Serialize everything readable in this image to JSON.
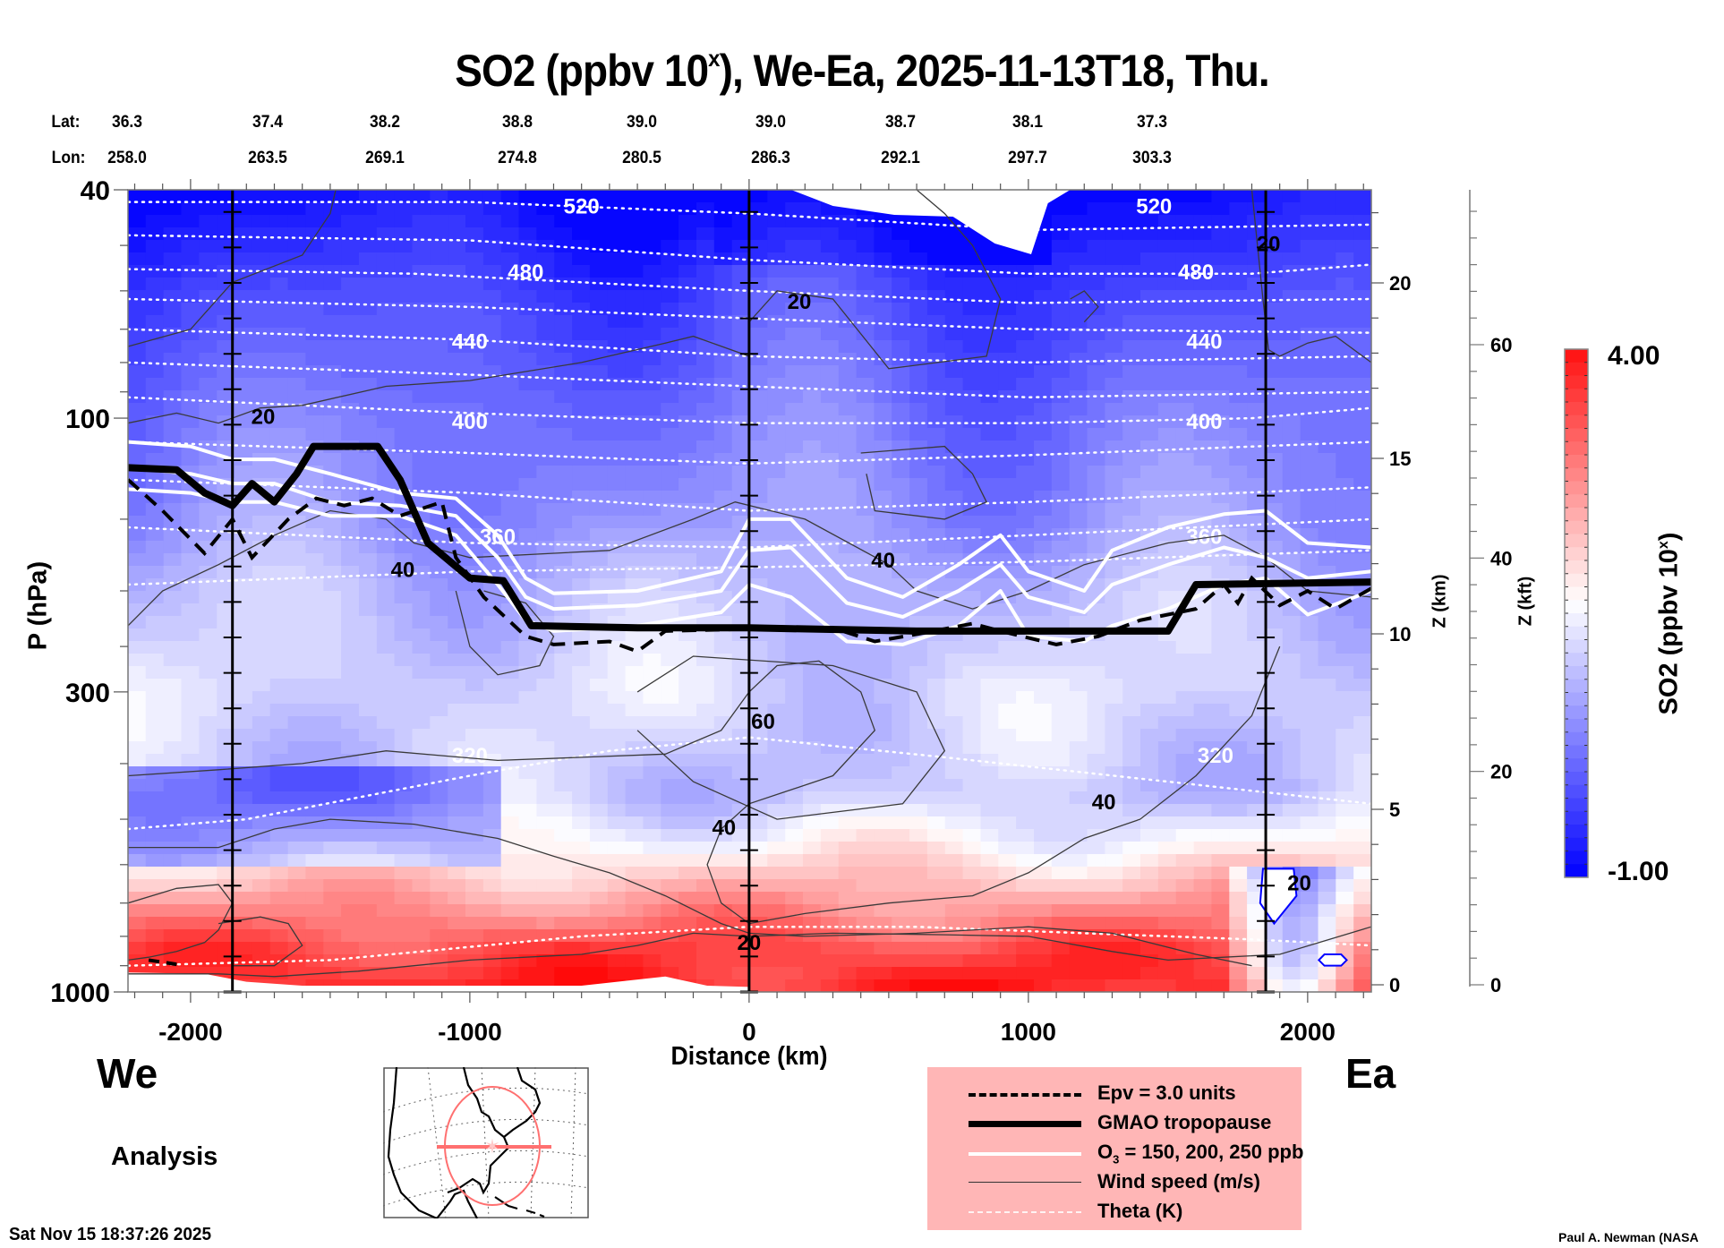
{
  "chart_data": {
    "type": "heatmap",
    "title": "SO2 (ppbv 10",
    "title_sup": "x",
    "title_rest": "), We-Ea, 2025-11-13T18, Thu.",
    "xlabel": "Distance (km)",
    "ylabel": "P (hPa)",
    "y2label": "Z (km)",
    "y3label": "Z (kft)",
    "xlim": [
      -2224,
      2228
    ],
    "ylim_hpa": [
      1000,
      40
    ],
    "yscale": "log",
    "x_ticks": [
      -2000,
      -1000,
      0,
      1000,
      2000
    ],
    "x_tick_labels": [
      "-2000",
      "-1000",
      "0",
      "1000",
      "2000"
    ],
    "y_ticks_hpa": [
      40,
      100,
      300,
      1000
    ],
    "y_tick_labels": [
      "40",
      "100",
      "300",
      "1000"
    ],
    "z_km_ticks": [
      0,
      5,
      10,
      15,
      20
    ],
    "z_km_tick_labels": [
      "0",
      "5",
      "10",
      "15",
      "20"
    ],
    "z_kft_ticks": [
      0,
      20,
      40,
      60
    ],
    "z_kft_tick_labels": [
      "0",
      "20",
      "40",
      "60"
    ],
    "reference_lines_km": [
      -1850,
      0,
      1850
    ],
    "lat_label": "Lat:",
    "lon_label": "Lon:",
    "lats": [
      "36.3",
      "37.4",
      "38.2",
      "38.8",
      "39.0",
      "39.0",
      "38.7",
      "38.1",
      "37.3"
    ],
    "lons": [
      "258.0",
      "263.5",
      "269.1",
      "274.8",
      "280.5",
      "286.3",
      "292.1",
      "297.7",
      "303.3"
    ],
    "colorbar": {
      "label": "SO2 (ppbv 10",
      "label_sup": "x",
      "label_end": ")",
      "min": -1.0,
      "max": 4.0,
      "min_label": "-1.00",
      "max_label": "4.00",
      "steps": 40,
      "low_color": "#0000ff",
      "mid_color": "#ffffff",
      "high_color": "#ff1010",
      "white_at": 1.6
    },
    "field_profile": {
      "description": "SO2 (log10 ppbv) vs pressure: high values near surface, low aloft",
      "pressure_hpa": [
        40,
        60,
        100,
        150,
        200,
        300,
        450,
        550,
        650,
        750,
        850,
        1000
      ],
      "so2_log10": [
        -0.9,
        -0.3,
        0.2,
        0.5,
        0.9,
        1.2,
        1.0,
        1.6,
        2.3,
        2.9,
        3.5,
        3.8
      ]
    },
    "theta_contours": [
      {
        "label": "520",
        "p_hpa": 43
      },
      {
        "label": "480",
        "p_hpa": 56
      },
      {
        "label": "440",
        "p_hpa": 74
      },
      {
        "label": "400",
        "p_hpa": 102
      },
      {
        "label": "360",
        "p_hpa": 162
      },
      {
        "label": "320",
        "p_hpa": 390
      }
    ],
    "wind_labels": [
      {
        "label": "20",
        "x_km": -1740,
        "p_hpa": 100
      },
      {
        "label": "20",
        "x_km": 180,
        "p_hpa": 63
      },
      {
        "label": "20",
        "x_km": 1860,
        "p_hpa": 50
      },
      {
        "label": "40",
        "x_km": -1240,
        "p_hpa": 185
      },
      {
        "label": "40",
        "x_km": 480,
        "p_hpa": 178
      },
      {
        "label": "60",
        "x_km": 50,
        "p_hpa": 340
      },
      {
        "label": "40",
        "x_km": -90,
        "p_hpa": 520
      },
      {
        "label": "40",
        "x_km": 1270,
        "p_hpa": 470
      },
      {
        "label": "20",
        "x_km": 1970,
        "p_hpa": 650
      },
      {
        "label": "20",
        "x_km": 0,
        "p_hpa": 825
      }
    ],
    "tropopause_hpa": [
      {
        "x_km": -2224,
        "p": 122
      },
      {
        "x_km": -2050,
        "p": 123
      },
      {
        "x_km": -1950,
        "p": 135
      },
      {
        "x_km": -1850,
        "p": 142
      },
      {
        "x_km": -1780,
        "p": 130
      },
      {
        "x_km": -1700,
        "p": 140
      },
      {
        "x_km": -1620,
        "p": 125
      },
      {
        "x_km": -1560,
        "p": 112
      },
      {
        "x_km": -1330,
        "p": 112
      },
      {
        "x_km": -1250,
        "p": 128
      },
      {
        "x_km": -1150,
        "p": 165
      },
      {
        "x_km": -1000,
        "p": 190
      },
      {
        "x_km": -880,
        "p": 192
      },
      {
        "x_km": -780,
        "p": 230
      },
      {
        "x_km": -400,
        "p": 232
      },
      {
        "x_km": 0,
        "p": 232
      },
      {
        "x_km": 600,
        "p": 235
      },
      {
        "x_km": 1500,
        "p": 235
      },
      {
        "x_km": 1600,
        "p": 195
      },
      {
        "x_km": 2228,
        "p": 193
      }
    ],
    "legend": [
      {
        "label": "Epv = 3.0 units",
        "style": "dashed"
      },
      {
        "label": "GMAO tropopause",
        "style": "thick"
      },
      {
        "label": "O",
        "label_sub": "3",
        "label_rest": " = 150, 200, 250 ppb",
        "style": "white"
      },
      {
        "label": "Wind speed (m/s)",
        "style": "thin"
      },
      {
        "label": "Theta (K)",
        "style": "dotted"
      }
    ]
  },
  "labels": {
    "west": "We",
    "east": "Ea",
    "analysis": "Analysis",
    "timestamp": "Sat Nov 15 18:37:26 2025",
    "credit": "Paul A. Newman (NASA"
  }
}
